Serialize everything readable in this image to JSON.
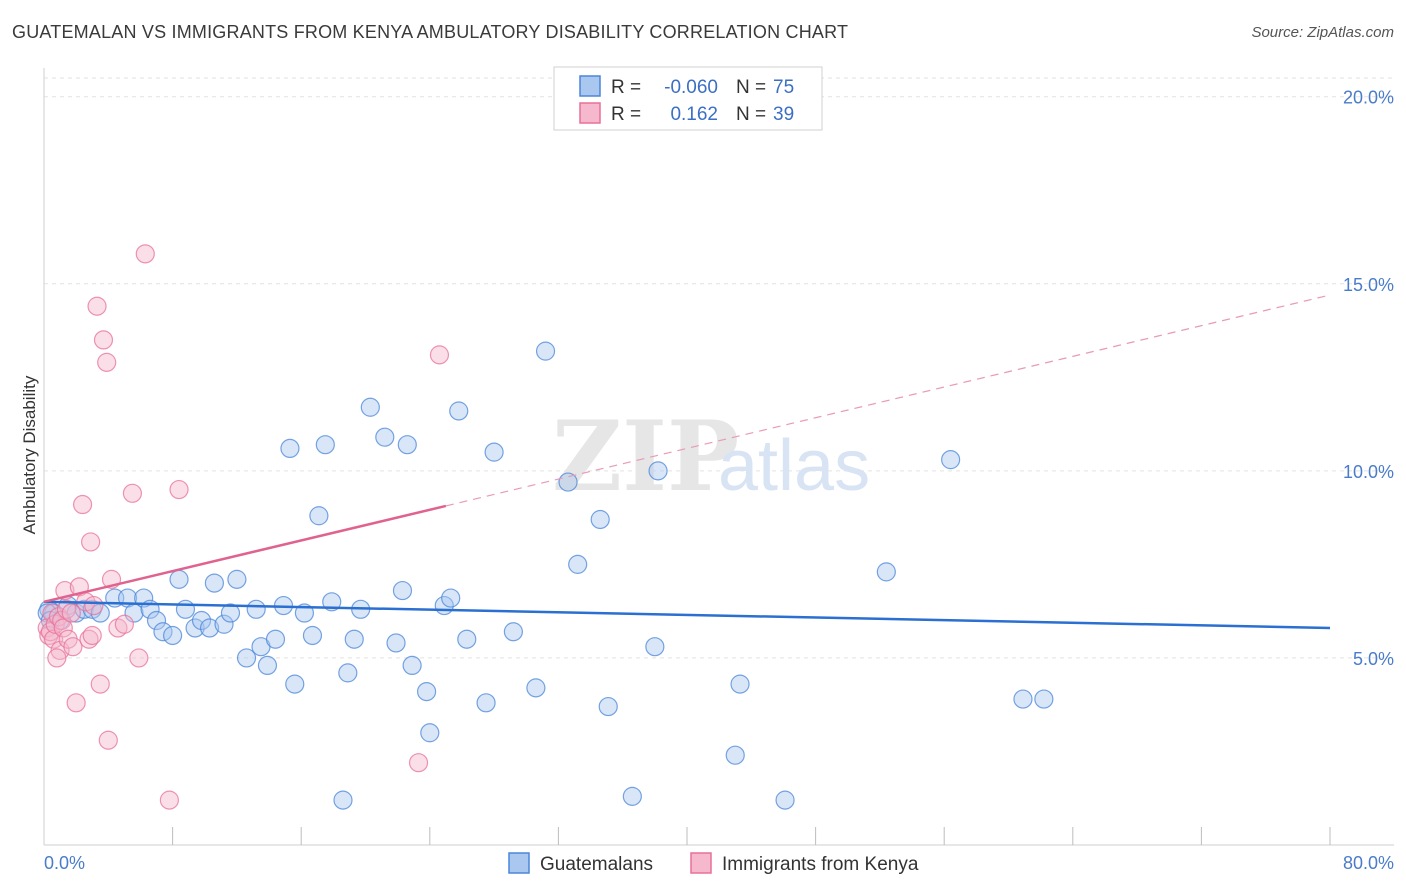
{
  "title": "GUATEMALAN VS IMMIGRANTS FROM KENYA AMBULATORY DISABILITY CORRELATION CHART",
  "source": "Source: ZipAtlas.com",
  "watermark": {
    "zip": "ZIP",
    "atlas": "atlas"
  },
  "colors": {
    "blue": "#4a86d8",
    "blue_fill": "#a9c7ef",
    "pink": "#e8709a",
    "pink_fill": "#f5b8cc",
    "axis_text": "#4a7cc9"
  },
  "legend": {
    "rows": [
      {
        "r_label": "R =",
        "r_value": "-0.060",
        "n_label": "N =",
        "n_value": "75"
      },
      {
        "r_label": "R =",
        "r_value": "0.162",
        "n_label": "N =",
        "n_value": "39"
      }
    ]
  },
  "chart_data": {
    "type": "scatter",
    "title": "GUATEMALAN VS IMMIGRANTS FROM KENYA AMBULATORY DISABILITY CORRELATION CHART",
    "xlabel": "",
    "ylabel": "Ambulatory Disability",
    "xlim": [
      0,
      80
    ],
    "ylim": [
      0,
      20.5
    ],
    "x_tick_labels": [
      "0.0%",
      "80.0%"
    ],
    "y_ticks": [
      5,
      10,
      15,
      20
    ],
    "y_tick_labels": [
      "5.0%",
      "10.0%",
      "15.0%",
      "20.0%"
    ],
    "series": [
      {
        "name": "Guatemalans",
        "r": -0.06,
        "n": 75,
        "trend": {
          "x": [
            0,
            80
          ],
          "y": [
            6.5,
            5.8
          ]
        },
        "points": [
          [
            0.3,
            6.3
          ],
          [
            0.6,
            6.2
          ],
          [
            1.0,
            6.0
          ],
          [
            1.5,
            6.4
          ],
          [
            2.0,
            6.2
          ],
          [
            2.5,
            6.3
          ],
          [
            3.0,
            6.3
          ],
          [
            3.5,
            6.2
          ],
          [
            4.4,
            6.6
          ],
          [
            5.2,
            6.6
          ],
          [
            5.6,
            6.2
          ],
          [
            6.2,
            6.6
          ],
          [
            6.6,
            6.3
          ],
          [
            7.0,
            6.0
          ],
          [
            7.4,
            5.7
          ],
          [
            8.0,
            5.6
          ],
          [
            8.4,
            7.1
          ],
          [
            8.8,
            6.3
          ],
          [
            9.4,
            5.8
          ],
          [
            9.8,
            6.0
          ],
          [
            10.3,
            5.8
          ],
          [
            10.6,
            7.0
          ],
          [
            11.2,
            5.9
          ],
          [
            11.6,
            6.2
          ],
          [
            12.0,
            7.1
          ],
          [
            12.6,
            5.0
          ],
          [
            13.2,
            6.3
          ],
          [
            13.5,
            5.3
          ],
          [
            13.9,
            4.8
          ],
          [
            14.4,
            5.5
          ],
          [
            14.9,
            6.4
          ],
          [
            15.3,
            10.6
          ],
          [
            15.6,
            4.3
          ],
          [
            16.2,
            6.2
          ],
          [
            16.7,
            5.6
          ],
          [
            17.1,
            8.8
          ],
          [
            17.5,
            10.7
          ],
          [
            17.9,
            6.5
          ],
          [
            18.6,
            1.2
          ],
          [
            18.9,
            4.6
          ],
          [
            19.3,
            5.5
          ],
          [
            19.7,
            6.3
          ],
          [
            20.3,
            11.7
          ],
          [
            21.2,
            10.9
          ],
          [
            21.9,
            5.4
          ],
          [
            22.3,
            6.8
          ],
          [
            22.6,
            10.7
          ],
          [
            22.9,
            4.8
          ],
          [
            23.8,
            4.1
          ],
          [
            24.0,
            3.0
          ],
          [
            24.9,
            6.4
          ],
          [
            25.3,
            6.6
          ],
          [
            25.8,
            11.6
          ],
          [
            26.3,
            5.5
          ],
          [
            27.5,
            3.8
          ],
          [
            28.0,
            10.5
          ],
          [
            29.2,
            5.7
          ],
          [
            30.6,
            4.2
          ],
          [
            31.2,
            13.2
          ],
          [
            32.6,
            9.7
          ],
          [
            33.2,
            7.5
          ],
          [
            34.6,
            8.7
          ],
          [
            35.1,
            3.7
          ],
          [
            36.6,
            1.3
          ],
          [
            38.0,
            5.3
          ],
          [
            38.2,
            10.0
          ],
          [
            43.0,
            2.4
          ],
          [
            43.3,
            4.3
          ],
          [
            46.1,
            1.2
          ],
          [
            52.4,
            7.3
          ],
          [
            56.4,
            10.3
          ],
          [
            60.9,
            3.9
          ],
          [
            62.2,
            3.9
          ],
          [
            0.2,
            6.2
          ],
          [
            0.4,
            6.0
          ]
        ]
      },
      {
        "name": "Immigrants from Kenya",
        "r": 0.162,
        "n": 39,
        "trend": {
          "x": [
            0,
            80
          ],
          "y": [
            6.5,
            14.7
          ]
        },
        "trend_solid_xmax": 25,
        "points": [
          [
            0.2,
            5.8
          ],
          [
            0.3,
            5.6
          ],
          [
            0.4,
            5.7
          ],
          [
            0.5,
            6.2
          ],
          [
            0.6,
            5.5
          ],
          [
            0.7,
            5.9
          ],
          [
            0.9,
            6.1
          ],
          [
            1.0,
            5.2
          ],
          [
            1.1,
            6.0
          ],
          [
            1.2,
            5.8
          ],
          [
            1.3,
            6.8
          ],
          [
            1.4,
            6.3
          ],
          [
            1.5,
            5.5
          ],
          [
            1.7,
            6.2
          ],
          [
            1.8,
            5.3
          ],
          [
            2.0,
            3.8
          ],
          [
            2.2,
            6.9
          ],
          [
            2.4,
            9.1
          ],
          [
            2.6,
            6.5
          ],
          [
            2.8,
            5.5
          ],
          [
            3.0,
            5.6
          ],
          [
            2.9,
            8.1
          ],
          [
            3.1,
            6.4
          ],
          [
            3.3,
            14.4
          ],
          [
            3.5,
            4.3
          ],
          [
            3.7,
            13.5
          ],
          [
            3.9,
            12.9
          ],
          [
            4.0,
            2.8
          ],
          [
            4.2,
            7.1
          ],
          [
            4.6,
            5.8
          ],
          [
            5.0,
            5.9
          ],
          [
            5.5,
            9.4
          ],
          [
            5.9,
            5.0
          ],
          [
            6.3,
            15.8
          ],
          [
            7.8,
            1.2
          ],
          [
            8.4,
            9.5
          ],
          [
            0.8,
            5.0
          ],
          [
            23.3,
            2.2
          ],
          [
            24.6,
            13.1
          ]
        ]
      }
    ]
  },
  "bottom_legend": {
    "items": [
      "Guatemalans",
      "Immigrants from Kenya"
    ]
  }
}
